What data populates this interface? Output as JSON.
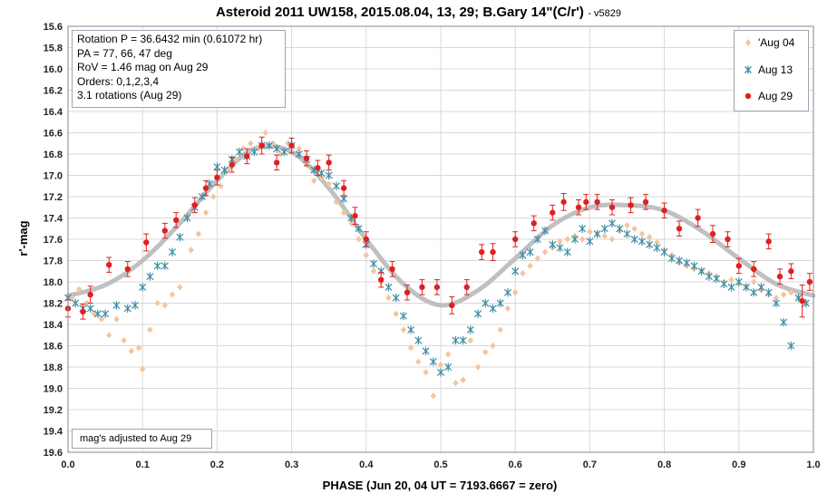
{
  "chart_data": {
    "type": "scatter",
    "title": "Asteroid 2011 UW158, 2015.08.04, 13, 29; B.Gary 14\"(C/r')",
    "version": "- v5829",
    "xlabel": "PHASE (Jun 20, 04 UT = 7193.6667 = zero)",
    "ylabel": "r'-mag",
    "xlim": [
      0.0,
      1.0
    ],
    "ylim": [
      15.6,
      19.6
    ],
    "y_inverted": true,
    "x_ticks": [
      "0.0",
      "0.1",
      "0.2",
      "0.3",
      "0.4",
      "0.5",
      "0.6",
      "0.7",
      "0.8",
      "0.9",
      "1.0"
    ],
    "y_ticks": [
      "15.6",
      "15.8",
      "16.0",
      "16.2",
      "16.4",
      "16.6",
      "16.8",
      "17.0",
      "17.2",
      "17.4",
      "17.6",
      "17.8",
      "18.0",
      "18.2",
      "18.4",
      "18.6",
      "18.8",
      "19.0",
      "19.2",
      "19.4",
      "19.6"
    ],
    "grid": true,
    "legend_position": "top-right",
    "info_lines": [
      "Rotation P = 36.6432 min (0.61072 hr)",
      "PA =  77, 66, 47 deg",
      "RoV = 1.46 mag on Aug 29",
      "Orders: 0,1,2,3,4",
      " 3.1 rotations (Aug 29)"
    ],
    "note": "mag's adjusted to Aug 29",
    "colors": {
      "aug04": "#f5c49a",
      "aug13": "#3b8ea5",
      "aug29": "#e02020",
      "fit": "#c0c0c0",
      "grid": "#d8d8d8"
    },
    "fit_curve": {
      "x": [
        0.0,
        0.05,
        0.1,
        0.15,
        0.2,
        0.25,
        0.3,
        0.35,
        0.4,
        0.45,
        0.5,
        0.55,
        0.6,
        0.65,
        0.7,
        0.75,
        0.8,
        0.85,
        0.9,
        0.95,
        1.0
      ],
      "y": [
        18.13,
        18.03,
        17.8,
        17.45,
        17.05,
        16.75,
        16.78,
        17.12,
        17.6,
        18.02,
        18.22,
        18.08,
        17.78,
        17.47,
        17.3,
        17.28,
        17.33,
        17.52,
        17.78,
        18.02,
        18.13
      ]
    },
    "series": [
      {
        "name": "'Aug 04",
        "marker": "diamond",
        "x": [
          0.005,
          0.015,
          0.025,
          0.035,
          0.045,
          0.055,
          0.065,
          0.075,
          0.085,
          0.095,
          0.1,
          0.11,
          0.12,
          0.13,
          0.14,
          0.15,
          0.165,
          0.175,
          0.185,
          0.195,
          0.205,
          0.215,
          0.225,
          0.235,
          0.245,
          0.255,
          0.265,
          0.275,
          0.285,
          0.295,
          0.31,
          0.32,
          0.33,
          0.34,
          0.35,
          0.36,
          0.37,
          0.38,
          0.39,
          0.4,
          0.41,
          0.42,
          0.43,
          0.44,
          0.45,
          0.46,
          0.47,
          0.48,
          0.49,
          0.5,
          0.51,
          0.52,
          0.53,
          0.54,
          0.55,
          0.56,
          0.57,
          0.58,
          0.59,
          0.6,
          0.61,
          0.62,
          0.63,
          0.64,
          0.65,
          0.66,
          0.67,
          0.68,
          0.69,
          0.7,
          0.71,
          0.72,
          0.73,
          0.74,
          0.75,
          0.76,
          0.77,
          0.78,
          0.79,
          0.8,
          0.81,
          0.82,
          0.83,
          0.84,
          0.85,
          0.86,
          0.87,
          0.88,
          0.89,
          0.9,
          0.91,
          0.92,
          0.93,
          0.94,
          0.95,
          0.96,
          0.97,
          0.98,
          0.99
        ],
        "y": [
          18.15,
          18.07,
          18.2,
          18.3,
          18.35,
          18.5,
          18.35,
          18.55,
          18.65,
          18.62,
          18.82,
          18.45,
          18.2,
          18.22,
          18.12,
          18.05,
          17.7,
          17.55,
          17.35,
          17.2,
          17.1,
          16.95,
          16.85,
          16.75,
          16.7,
          16.75,
          16.6,
          16.7,
          16.8,
          16.7,
          16.75,
          16.9,
          17.05,
          17.02,
          17.08,
          17.25,
          17.35,
          17.45,
          17.6,
          17.75,
          17.9,
          18.0,
          18.15,
          18.3,
          18.45,
          18.62,
          18.75,
          18.85,
          19.07,
          18.78,
          18.68,
          18.95,
          18.92,
          18.55,
          18.8,
          18.66,
          18.6,
          18.45,
          18.25,
          18.1,
          17.92,
          17.85,
          17.78,
          17.72,
          17.68,
          17.62,
          17.6,
          17.57,
          17.6,
          17.53,
          17.55,
          17.57,
          17.6,
          17.52,
          17.47,
          17.5,
          17.55,
          17.58,
          17.63,
          17.7,
          17.75,
          17.82,
          17.85,
          17.88,
          17.9,
          17.92,
          17.95,
          18.0,
          17.98,
          18.02,
          18.05,
          18.0,
          18.08,
          18.12,
          18.15,
          18.12,
          18.1,
          18.15,
          18.2
        ]
      },
      {
        "name": "Aug 13",
        "marker": "asterisk",
        "x": [
          0.0,
          0.01,
          0.02,
          0.03,
          0.04,
          0.05,
          0.065,
          0.08,
          0.09,
          0.1,
          0.11,
          0.12,
          0.13,
          0.14,
          0.15,
          0.16,
          0.17,
          0.18,
          0.19,
          0.2,
          0.21,
          0.22,
          0.23,
          0.24,
          0.25,
          0.26,
          0.27,
          0.28,
          0.29,
          0.3,
          0.31,
          0.32,
          0.33,
          0.34,
          0.35,
          0.36,
          0.37,
          0.38,
          0.39,
          0.4,
          0.41,
          0.42,
          0.43,
          0.44,
          0.45,
          0.46,
          0.47,
          0.48,
          0.49,
          0.5,
          0.51,
          0.52,
          0.53,
          0.54,
          0.55,
          0.56,
          0.57,
          0.58,
          0.59,
          0.6,
          0.61,
          0.62,
          0.63,
          0.64,
          0.65,
          0.66,
          0.67,
          0.68,
          0.69,
          0.7,
          0.71,
          0.72,
          0.73,
          0.74,
          0.75,
          0.76,
          0.77,
          0.78,
          0.79,
          0.8,
          0.81,
          0.82,
          0.83,
          0.84,
          0.85,
          0.86,
          0.87,
          0.88,
          0.89,
          0.9,
          0.91,
          0.92,
          0.93,
          0.94,
          0.95,
          0.96,
          0.97,
          0.98,
          0.99
        ],
        "y": [
          18.15,
          18.2,
          18.25,
          18.25,
          18.3,
          18.3,
          18.22,
          18.25,
          18.22,
          18.05,
          17.95,
          17.85,
          17.85,
          17.72,
          17.58,
          17.4,
          17.3,
          17.2,
          17.08,
          16.92,
          16.95,
          16.85,
          16.78,
          16.82,
          16.78,
          16.72,
          16.72,
          16.75,
          16.78,
          16.72,
          16.8,
          16.85,
          16.95,
          16.98,
          17.0,
          17.1,
          17.22,
          17.4,
          17.5,
          17.65,
          17.83,
          17.9,
          18.05,
          18.15,
          18.32,
          18.45,
          18.55,
          18.65,
          18.75,
          18.85,
          18.8,
          18.55,
          18.55,
          18.45,
          18.3,
          18.2,
          18.25,
          18.2,
          18.1,
          17.9,
          17.75,
          17.72,
          17.6,
          17.52,
          17.65,
          17.68,
          17.72,
          17.6,
          17.5,
          17.62,
          17.55,
          17.5,
          17.45,
          17.5,
          17.55,
          17.6,
          17.62,
          17.65,
          17.68,
          17.72,
          17.78,
          17.8,
          17.82,
          17.85,
          17.9,
          17.95,
          17.97,
          18.02,
          18.05,
          18.0,
          18.05,
          18.1,
          18.05,
          18.1,
          18.2,
          18.38,
          18.6,
          18.15,
          18.2
        ]
      },
      {
        "name": "Aug 29",
        "marker": "circle",
        "x": [
          0.0,
          0.02,
          0.03,
          0.055,
          0.08,
          0.105,
          0.13,
          0.145,
          0.17,
          0.185,
          0.2,
          0.22,
          0.24,
          0.26,
          0.28,
          0.3,
          0.32,
          0.335,
          0.35,
          0.37,
          0.385,
          0.4,
          0.42,
          0.435,
          0.455,
          0.475,
          0.495,
          0.515,
          0.535,
          0.555,
          0.57,
          0.6,
          0.625,
          0.65,
          0.665,
          0.685,
          0.695,
          0.71,
          0.73,
          0.755,
          0.775,
          0.8,
          0.82,
          0.845,
          0.865,
          0.885,
          0.9,
          0.92,
          0.94,
          0.955,
          0.97,
          0.985,
          0.995
        ],
        "y": [
          18.25,
          18.28,
          18.12,
          17.84,
          17.88,
          17.63,
          17.52,
          17.42,
          17.28,
          17.12,
          17.02,
          16.9,
          16.82,
          16.72,
          16.88,
          16.72,
          16.84,
          16.93,
          16.88,
          17.12,
          17.38,
          17.6,
          17.98,
          17.88,
          18.1,
          18.05,
          18.05,
          18.22,
          18.05,
          17.72,
          17.72,
          17.6,
          17.45,
          17.35,
          17.25,
          17.3,
          17.25,
          17.25,
          17.3,
          17.28,
          17.25,
          17.33,
          17.5,
          17.4,
          17.55,
          17.6,
          17.85,
          17.88,
          17.62,
          17.95,
          17.9,
          18.18,
          18.0
        ],
        "err": [
          0.08,
          0.07,
          0.08,
          0.07,
          0.07,
          0.08,
          0.07,
          0.07,
          0.07,
          0.07,
          0.07,
          0.07,
          0.07,
          0.08,
          0.07,
          0.07,
          0.07,
          0.07,
          0.07,
          0.07,
          0.08,
          0.07,
          0.07,
          0.07,
          0.07,
          0.07,
          0.07,
          0.08,
          0.07,
          0.07,
          0.08,
          0.07,
          0.07,
          0.07,
          0.08,
          0.07,
          0.07,
          0.07,
          0.07,
          0.07,
          0.07,
          0.07,
          0.07,
          0.08,
          0.08,
          0.07,
          0.07,
          0.07,
          0.07,
          0.07,
          0.07,
          0.15,
          0.08
        ]
      }
    ]
  }
}
